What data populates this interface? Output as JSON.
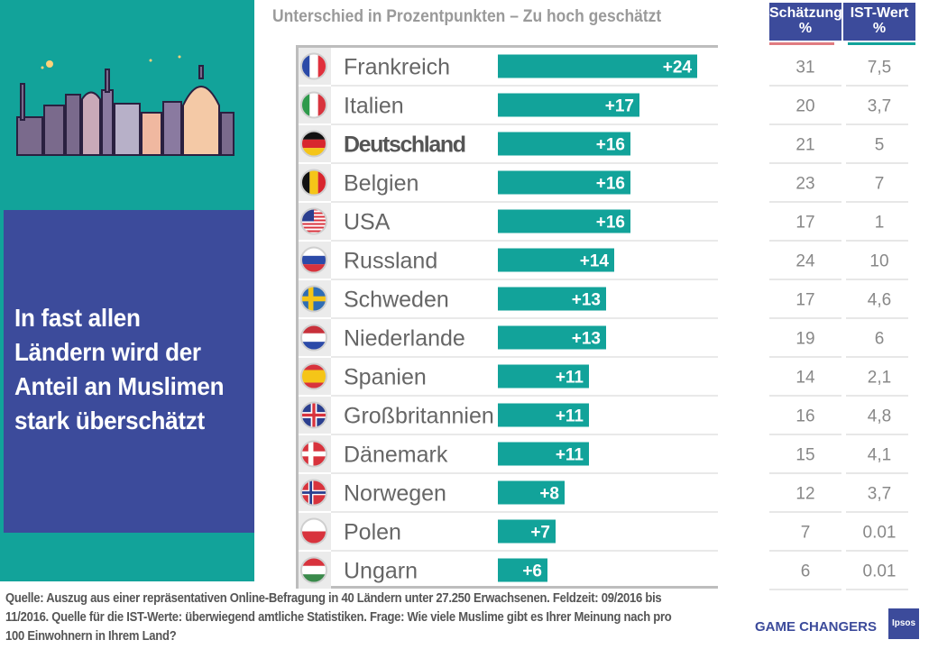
{
  "headline": "In fast allen Ländern wird der Anteil an Muslimen stark überschätzt",
  "column_headers": {
    "estimate": "Schätzung\n%",
    "actual": "IST-Wert\n%"
  },
  "chart_data": {
    "type": "bar",
    "orientation": "horizontal",
    "title": "Unterschied in Prozentpunkten – Zu hoch geschätzt",
    "categories": [
      "Frankreich",
      "Italien",
      "Deutschland",
      "Belgien",
      "USA",
      "Russland",
      "Schweden",
      "Niederlande",
      "Spanien",
      "Großbritannien",
      "Dänemark",
      "Norwegen",
      "Polen",
      "Ungarn"
    ],
    "values": [
      24,
      17,
      16,
      16,
      16,
      14,
      13,
      13,
      11,
      11,
      11,
      8,
      7,
      6
    ],
    "labels": [
      "+24",
      "+17",
      "+16",
      "+16",
      "+16",
      "+14",
      "+13",
      "+13",
      "+11",
      "+11",
      "+11",
      "+8",
      "+7",
      "+6"
    ],
    "highlight": "Deutschland",
    "xlim": [
      0,
      24
    ],
    "estimate": [
      "31",
      "20",
      "21",
      "23",
      "17",
      "24",
      "17",
      "19",
      "14",
      "16",
      "15",
      "12",
      "7",
      "6"
    ],
    "actual": [
      "7,5",
      "3,7",
      "5",
      "7",
      "1",
      "10",
      "4,6",
      "6",
      "2,1",
      "4,8",
      "4,1",
      "3,7",
      "0.01",
      "0.01"
    ],
    "bar_color": "#12a39a"
  },
  "flags": [
    "flag-france-icon",
    "flag-italy-icon",
    "flag-germany-icon",
    "flag-belgium-icon",
    "flag-usa-icon",
    "flag-russia-icon",
    "flag-sweden-icon",
    "flag-netherlands-icon",
    "flag-spain-icon",
    "flag-uk-icon",
    "flag-denmark-icon",
    "flag-norway-icon",
    "flag-poland-icon",
    "flag-hungary-icon"
  ],
  "source": "Quelle: Auszug aus einer repräsentativen Online-Befragung in 40 Ländern unter 27.250 Erwachsenen. Feldzeit: 09/2016 bis 11/2016. Quelle für die IST-Werte: überwiegend amtliche Statistiken. Frage: Wie viele Muslime gibt es Ihrer Meinung nach pro 100 Einwohnern in Ihrem Land?",
  "brand": {
    "tagline": "GAME CHANGERS",
    "logo": "Ipsos"
  },
  "colors": {
    "teal": "#12a39a",
    "navy": "#3c4b9b",
    "pink": "#e07b80",
    "grey_text": "#9a9a9a"
  }
}
